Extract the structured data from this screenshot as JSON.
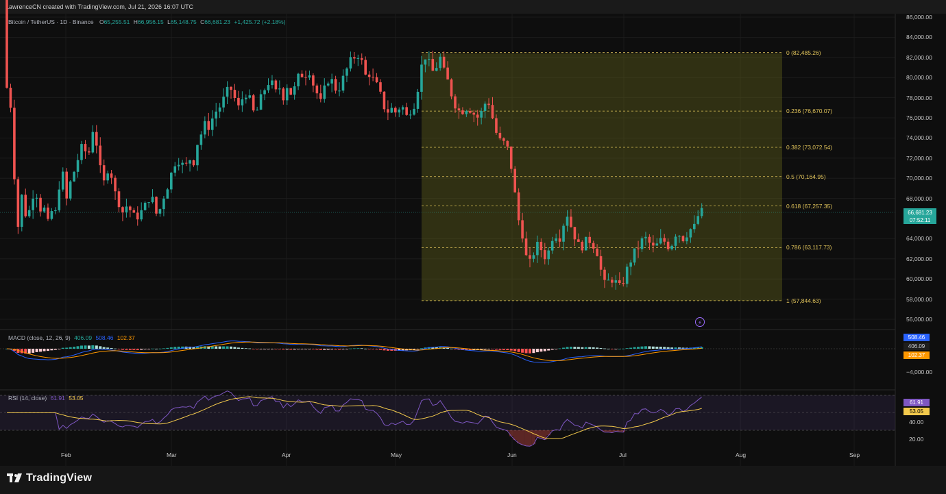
{
  "header": {
    "attribution": "LawrenceCN created with TradingView.com, Jul 21, 2026 16:07 UTC"
  },
  "brand": {
    "name": "TradingView"
  },
  "colors": {
    "up": "#26a69a",
    "down": "#ef5350",
    "fib": "#e0c35a",
    "macd": "#2962ff",
    "signal": "#ff9800",
    "rsi": "#7e57c2",
    "rsi_ma": "#f2c94c"
  },
  "main_legend": {
    "symbol": "Bitcoin / TetherUS · 1D · Binance",
    "o_label": "O",
    "o": "65,255.51",
    "h_label": "H",
    "h": "66,956.15",
    "l_label": "L",
    "l": "65,148.75",
    "c_label": "C",
    "c": "66,681.23",
    "change": "+1,425.72 (+2.18%)"
  },
  "price_axis": [
    "86,000.00",
    "84,000.00",
    "82,000.00",
    "80,000.00",
    "78,000.00",
    "76,000.00",
    "74,000.00",
    "72,000.00",
    "70,000.00",
    "68,000.00",
    "64,000.00",
    "62,000.00",
    "60,000.00",
    "58,000.00",
    "56,000.00"
  ],
  "price_badge": {
    "price": "66,681.23",
    "countdown": "07:52:11"
  },
  "fib_levels": [
    {
      "label": "0 (82,485.26)"
    },
    {
      "label": "0.236 (76,670.07)"
    },
    {
      "label": "0.382 (73,072.54)"
    },
    {
      "label": "0.5 (70,164.95)"
    },
    {
      "label": "0.618 (67,257.35)"
    },
    {
      "label": "0.786 (63,117.73)"
    },
    {
      "label": "1 (57,844.63)"
    }
  ],
  "macd": {
    "label": "MACD (close, 12, 26, 9)",
    "hist": "406.09",
    "macd": "508.46",
    "signal": "102.37",
    "axis": "−4,000.00"
  },
  "rsi": {
    "label": "RSI (14, close)",
    "rsi": "61.91",
    "ma": "53.05",
    "axis_40": "40.00",
    "axis_20": "20.00"
  },
  "months": [
    "Feb",
    "Mar",
    "Apr",
    "May",
    "Jun",
    "Jul",
    "Aug",
    "Sep"
  ],
  "bolt_icon": "lightning-icon"
}
